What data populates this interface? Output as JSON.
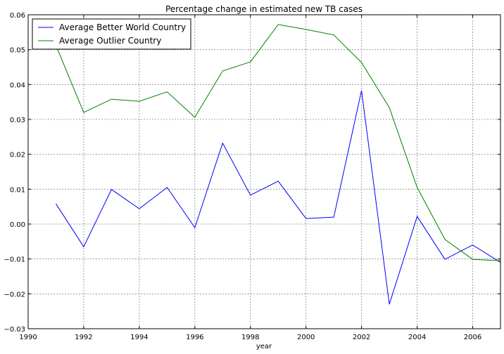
{
  "chart_data": {
    "type": "line",
    "title": "Percentage change in estimated new TB cases",
    "xlabel": "year",
    "ylabel": "",
    "xlim": [
      1990,
      2007
    ],
    "ylim": [
      -0.03,
      0.06
    ],
    "grid": true,
    "legend_position": "top-left",
    "x_ticks": [
      "1990",
      "1992",
      "1994",
      "1996",
      "1998",
      "2000",
      "2002",
      "2004",
      "2006"
    ],
    "x_tick_values": [
      1990,
      1992,
      1994,
      1996,
      1998,
      2000,
      2002,
      2004,
      2006
    ],
    "y_ticks": [
      "−0.03",
      "−0.02",
      "−0.01",
      "0.00",
      "0.01",
      "0.02",
      "0.03",
      "0.04",
      "0.05",
      "0.06"
    ],
    "y_tick_values": [
      -0.03,
      -0.02,
      -0.01,
      0,
      0.01,
      0.02,
      0.03,
      0.04,
      0.05,
      0.06
    ],
    "x": [
      1991,
      1992,
      1993,
      1994,
      1995,
      1996,
      1997,
      1998,
      1999,
      2000,
      2001,
      2002,
      2003,
      2004,
      2005,
      2006,
      2007
    ],
    "series": [
      {
        "name": "Average Better World Country",
        "color": "#0000ff",
        "values": [
          0.0058,
          -0.0065,
          0.0099,
          0.0044,
          0.0105,
          -0.001,
          0.0232,
          0.0083,
          0.0123,
          0.0016,
          0.002,
          0.0383,
          -0.023,
          0.0022,
          -0.0101,
          -0.006,
          -0.011
        ]
      },
      {
        "name": "Average Outlier Country",
        "color": "#008000",
        "values": [
          0.0512,
          0.032,
          0.0358,
          0.0352,
          0.0379,
          0.0306,
          0.0439,
          0.0465,
          0.0572,
          0.0558,
          0.0542,
          0.0463,
          0.0334,
          0.0105,
          -0.0044,
          -0.0101,
          -0.0105
        ]
      }
    ]
  }
}
